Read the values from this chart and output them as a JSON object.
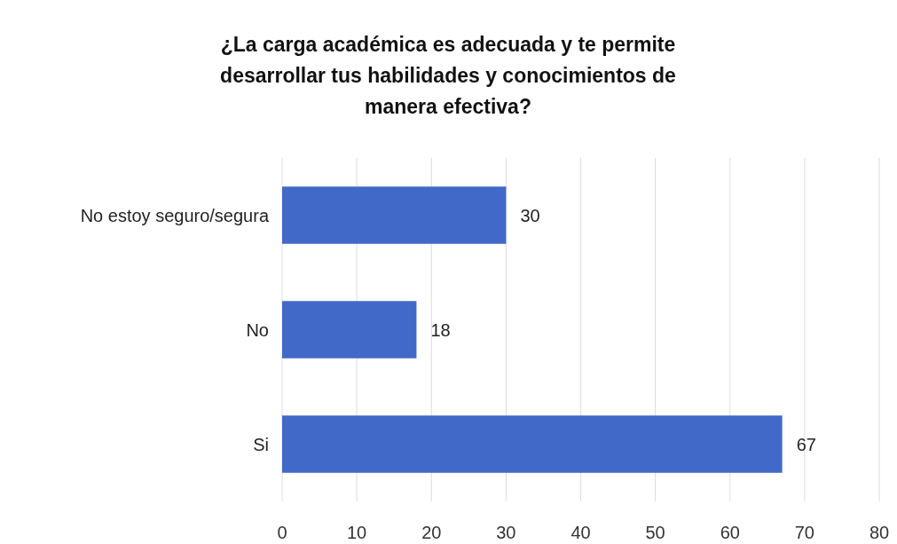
{
  "chart_data": {
    "type": "bar",
    "orientation": "horizontal",
    "title": "¿La carga académica es adecuada y te permite desarrollar tus habilidades y conocimientos de manera efectiva?",
    "categories": [
      "No estoy seguro/segura",
      "No",
      "Si"
    ],
    "values": [
      30,
      18,
      67
    ],
    "color": "#4169c8",
    "xlim": [
      0,
      80
    ],
    "xticks": [
      0,
      10,
      20,
      30,
      40,
      50,
      60,
      70,
      80
    ],
    "grid": "x",
    "data_labels": true
  }
}
